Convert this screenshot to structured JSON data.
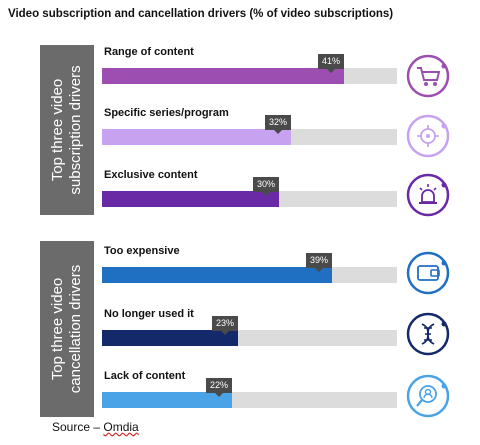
{
  "title": "Video subscription and cancellation drivers (% of video subscriptions)",
  "source": {
    "prefix": "Source – ",
    "name": "Omdia"
  },
  "panels": [
    {
      "label_line1": "Top three video",
      "label_line2": "subscription drivers"
    },
    {
      "label_line1": "Top three video",
      "label_line2": "cancellation drivers"
    }
  ],
  "chart_data": {
    "type": "bar",
    "orientation": "horizontal",
    "title": "Video subscription and cancellation drivers (% of video subscriptions)",
    "xlim": [
      0,
      50
    ],
    "unit": "%",
    "groups": [
      {
        "name": "Top three video subscription drivers",
        "categories": [
          "Range of content",
          "Specific series/program",
          "Exclusive content"
        ],
        "values": [
          41,
          32,
          30
        ],
        "value_labels": [
          "41%",
          "32%",
          "30%"
        ],
        "colors": [
          "#9c4fb0",
          "#c7a2f0",
          "#6a2aa6"
        ],
        "icons": [
          "shopping-cart-icon",
          "target-icon",
          "alarm-light-icon"
        ]
      },
      {
        "name": "Top three video cancellation drivers",
        "categories": [
          "Too expensive",
          "No longer used it",
          "Lack of content"
        ],
        "values": [
          39,
          23,
          22
        ],
        "value_labels": [
          "39%",
          "23%",
          "22%"
        ],
        "colors": [
          "#1f6fc2",
          "#13296a",
          "#4aa3e6"
        ],
        "icons": [
          "wallet-icon",
          "dna-icon",
          "search-person-icon"
        ]
      }
    ]
  }
}
